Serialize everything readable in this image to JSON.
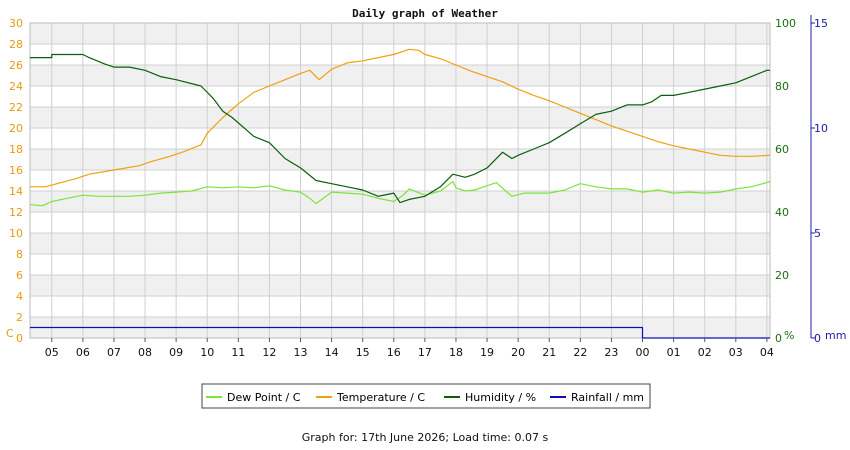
{
  "colors": {
    "left_axis": "#e79a10",
    "humidity_axis": "#1a6e10",
    "rain_axis": "#1c1ca8",
    "dew_point": "#7ee33a",
    "temperature": "#f0a010",
    "humidity": "#0b5e0b",
    "rainfall": "#1010b0",
    "band": "#f0f0f0",
    "grid": "#d0d0d0"
  },
  "footer_text": "Graph for: 17th June 2026; Load time: 0.07 s",
  "chart_data": {
    "type": "line",
    "title": "Daily graph of Weather",
    "x_tick_labels": [
      "05",
      "06",
      "07",
      "08",
      "09",
      "10",
      "11",
      "12",
      "13",
      "14",
      "15",
      "16",
      "17",
      "18",
      "19",
      "20",
      "21",
      "22",
      "23",
      "00",
      "01",
      "02",
      "03",
      "04"
    ],
    "x_range_hours": [
      4.3,
      28.1
    ],
    "left_axis": {
      "unit_label": "C",
      "range": [
        0,
        30
      ],
      "ticks": [
        0,
        2,
        4,
        6,
        8,
        10,
        12,
        14,
        16,
        18,
        20,
        22,
        24,
        26,
        28,
        30
      ]
    },
    "right_axis_1": {
      "unit_label": "%",
      "range": [
        0,
        100
      ],
      "ticks": [
        0,
        20,
        40,
        60,
        80,
        100
      ]
    },
    "right_axis_2": {
      "unit_label": "mm",
      "range": [
        0,
        15
      ],
      "ticks": [
        0,
        5,
        10,
        15
      ]
    },
    "grid": true,
    "legend_position": "bottom",
    "series": [
      {
        "name": "Dew Point / C",
        "axis": "left",
        "color_key": "dew_point",
        "points": [
          [
            4.3,
            12.7
          ],
          [
            4.7,
            12.6
          ],
          [
            5.0,
            13.0
          ],
          [
            5.5,
            13.3
          ],
          [
            6.0,
            13.6
          ],
          [
            6.5,
            13.5
          ],
          [
            7.0,
            13.5
          ],
          [
            7.5,
            13.5
          ],
          [
            8.0,
            13.6
          ],
          [
            8.5,
            13.8
          ],
          [
            9.0,
            13.9
          ],
          [
            9.5,
            14.0
          ],
          [
            10.0,
            14.4
          ],
          [
            10.5,
            14.3
          ],
          [
            11.0,
            14.4
          ],
          [
            11.5,
            14.3
          ],
          [
            12.0,
            14.5
          ],
          [
            12.5,
            14.1
          ],
          [
            13.0,
            13.9
          ],
          [
            13.3,
            13.3
          ],
          [
            13.5,
            12.8
          ],
          [
            14.0,
            13.9
          ],
          [
            14.5,
            13.8
          ],
          [
            15.0,
            13.7
          ],
          [
            15.5,
            13.3
          ],
          [
            16.0,
            13.0
          ],
          [
            16.3,
            13.6
          ],
          [
            16.5,
            14.2
          ],
          [
            17.0,
            13.6
          ],
          [
            17.5,
            14.0
          ],
          [
            17.9,
            14.9
          ],
          [
            18.0,
            14.3
          ],
          [
            18.3,
            14.0
          ],
          [
            18.6,
            14.1
          ],
          [
            19.0,
            14.5
          ],
          [
            19.3,
            14.8
          ],
          [
            19.6,
            14.0
          ],
          [
            19.8,
            13.5
          ],
          [
            20.2,
            13.8
          ],
          [
            21.0,
            13.8
          ],
          [
            21.5,
            14.1
          ],
          [
            22.0,
            14.7
          ],
          [
            22.5,
            14.4
          ],
          [
            23.0,
            14.2
          ],
          [
            23.5,
            14.2
          ],
          [
            24.0,
            13.9
          ],
          [
            24.5,
            14.1
          ],
          [
            25.0,
            13.8
          ],
          [
            25.5,
            13.9
          ],
          [
            26.0,
            13.8
          ],
          [
            26.5,
            13.9
          ],
          [
            27.0,
            14.2
          ],
          [
            27.5,
            14.4
          ],
          [
            28.0,
            14.8
          ],
          [
            28.1,
            14.9
          ]
        ]
      },
      {
        "name": "Temperature / C",
        "axis": "left",
        "color_key": "temperature",
        "points": [
          [
            4.3,
            14.4
          ],
          [
            4.8,
            14.4
          ],
          [
            5.3,
            14.8
          ],
          [
            5.8,
            15.2
          ],
          [
            6.2,
            15.6
          ],
          [
            7.0,
            16.0
          ],
          [
            7.8,
            16.4
          ],
          [
            8.2,
            16.8
          ],
          [
            8.8,
            17.3
          ],
          [
            9.2,
            17.7
          ],
          [
            9.8,
            18.4
          ],
          [
            10.0,
            19.5
          ],
          [
            10.5,
            21.0
          ],
          [
            11.0,
            22.3
          ],
          [
            11.5,
            23.4
          ],
          [
            12.0,
            24.0
          ],
          [
            12.5,
            24.6
          ],
          [
            13.0,
            25.2
          ],
          [
            13.3,
            25.5
          ],
          [
            13.6,
            24.6
          ],
          [
            14.0,
            25.6
          ],
          [
            14.5,
            26.2
          ],
          [
            15.0,
            26.4
          ],
          [
            15.5,
            26.7
          ],
          [
            16.0,
            27.0
          ],
          [
            16.5,
            27.5
          ],
          [
            16.8,
            27.4
          ],
          [
            17.0,
            27.0
          ],
          [
            17.5,
            26.6
          ],
          [
            18.0,
            26.0
          ],
          [
            18.5,
            25.4
          ],
          [
            19.0,
            24.9
          ],
          [
            19.5,
            24.4
          ],
          [
            20.0,
            23.7
          ],
          [
            20.5,
            23.1
          ],
          [
            21.0,
            22.6
          ],
          [
            21.5,
            22.0
          ],
          [
            22.0,
            21.4
          ],
          [
            22.5,
            20.8
          ],
          [
            23.0,
            20.2
          ],
          [
            23.5,
            19.7
          ],
          [
            24.0,
            19.2
          ],
          [
            24.5,
            18.7
          ],
          [
            25.0,
            18.3
          ],
          [
            25.5,
            18.0
          ],
          [
            26.0,
            17.7
          ],
          [
            26.5,
            17.4
          ],
          [
            27.0,
            17.3
          ],
          [
            27.5,
            17.3
          ],
          [
            28.1,
            17.4
          ]
        ]
      },
      {
        "name": "Humidity / %",
        "axis": "right_1",
        "color_key": "humidity",
        "points": [
          [
            4.3,
            89
          ],
          [
            5.0,
            89
          ],
          [
            5.0,
            90
          ],
          [
            6.0,
            90
          ],
          [
            6.2,
            89
          ],
          [
            6.7,
            87
          ],
          [
            7.0,
            86
          ],
          [
            7.5,
            86
          ],
          [
            8.0,
            85
          ],
          [
            8.5,
            83
          ],
          [
            9.0,
            82
          ],
          [
            9.8,
            80
          ],
          [
            10.2,
            76
          ],
          [
            10.5,
            72
          ],
          [
            10.8,
            70
          ],
          [
            11.5,
            64
          ],
          [
            12.0,
            62
          ],
          [
            12.5,
            57
          ],
          [
            13.0,
            54
          ],
          [
            13.5,
            50
          ],
          [
            14.0,
            49
          ],
          [
            14.5,
            48
          ],
          [
            15.0,
            47
          ],
          [
            15.5,
            45
          ],
          [
            16.0,
            46
          ],
          [
            16.2,
            43
          ],
          [
            16.5,
            44
          ],
          [
            17.0,
            45
          ],
          [
            17.5,
            48
          ],
          [
            17.9,
            52
          ],
          [
            18.3,
            51
          ],
          [
            18.6,
            52
          ],
          [
            19.0,
            54
          ],
          [
            19.5,
            59
          ],
          [
            19.8,
            57
          ],
          [
            20.0,
            58
          ],
          [
            20.5,
            60
          ],
          [
            21.0,
            62
          ],
          [
            21.5,
            65
          ],
          [
            22.0,
            68
          ],
          [
            22.5,
            71
          ],
          [
            23.0,
            72
          ],
          [
            23.5,
            74
          ],
          [
            24.0,
            74
          ],
          [
            24.3,
            75
          ],
          [
            24.6,
            77
          ],
          [
            25.0,
            77
          ],
          [
            25.5,
            78
          ],
          [
            26.0,
            79
          ],
          [
            26.5,
            80
          ],
          [
            27.0,
            81
          ],
          [
            27.5,
            83
          ],
          [
            28.0,
            85
          ],
          [
            28.1,
            85
          ]
        ]
      },
      {
        "name": "Rainfall / mm",
        "axis": "right_2",
        "color_key": "rainfall",
        "points": [
          [
            4.3,
            0.5
          ],
          [
            24.0,
            0.5
          ],
          [
            24.0,
            0.0
          ],
          [
            28.1,
            0.0
          ]
        ]
      }
    ]
  }
}
